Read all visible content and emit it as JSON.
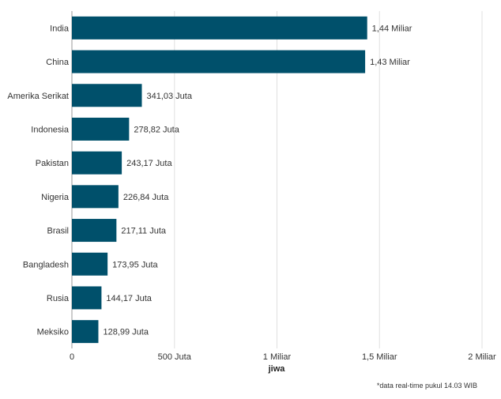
{
  "chart_data": {
    "type": "bar",
    "orientation": "horizontal",
    "categories": [
      "India",
      "China",
      "Amerika Serikat",
      "Indonesia",
      "Pakistan",
      "Nigeria",
      "Brasil",
      "Bangladesh",
      "Rusia",
      "Meksiko"
    ],
    "values": [
      1440000000,
      1430000000,
      341030000,
      278820000,
      243170000,
      226840000,
      217110000,
      173950000,
      144170000,
      128990000
    ],
    "data_labels": [
      "1,44 Miliar",
      "1,43 Miliar",
      "341,03 Juta",
      "278,82 Juta",
      "243,17 Juta",
      "226,84 Juta",
      "217,11 Juta",
      "173,95 Juta",
      "144,17 Juta",
      "128,99 Juta"
    ],
    "xlim": [
      0,
      2000000000
    ],
    "xticks": [
      0,
      500000000,
      1000000000,
      1500000000,
      2000000000
    ],
    "xtick_labels": [
      "0",
      "500 Juta",
      "1 Miliar",
      "1,5 Miliar",
      "2 Miliar"
    ],
    "xlabel": "jiwa",
    "ylabel": "",
    "title": "",
    "grid": "vertical",
    "bar_color": "#00506b"
  },
  "footnote": "*data real-time pukul 14.03 WIB"
}
